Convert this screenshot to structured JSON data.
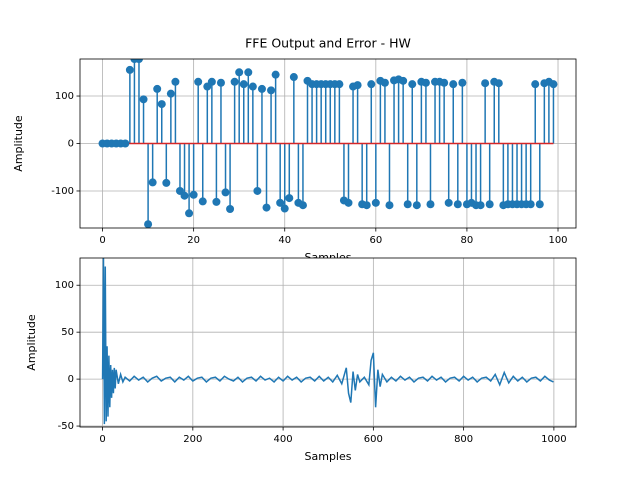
{
  "chart_data": [
    {
      "type": "stem",
      "title": "FFE Output and Error - HW",
      "xlabel": "Samples",
      "ylabel": "Amplitude",
      "color": "#1f77b4",
      "baseline_color": "#d62728",
      "grid": true,
      "x": [
        0,
        1,
        2,
        3,
        4,
        5,
        6,
        7,
        8,
        9,
        10,
        11,
        12,
        13,
        14,
        15,
        16,
        17,
        18,
        19,
        20,
        21,
        22,
        23,
        24,
        25,
        26,
        27,
        28,
        29,
        30,
        31,
        32,
        33,
        34,
        35,
        36,
        37,
        38,
        39,
        40,
        41,
        42,
        43,
        44,
        45,
        46,
        47,
        48,
        49,
        50,
        51,
        52,
        53,
        54,
        55,
        56,
        57,
        58,
        59,
        60,
        61,
        62,
        63,
        64,
        65,
        66,
        67,
        68,
        69,
        70,
        71,
        72,
        73,
        74,
        75,
        76,
        77,
        78,
        79,
        80,
        81,
        82,
        83,
        84,
        85,
        86,
        87,
        88,
        89,
        90,
        91,
        92,
        93,
        94,
        95,
        96,
        97,
        98,
        99
      ],
      "values": [
        0,
        0,
        0,
        0,
        0,
        0,
        155,
        178,
        178,
        93,
        -170,
        -82,
        115,
        83,
        -83,
        105,
        130,
        -100,
        -110,
        -147,
        -108,
        130,
        -122,
        120,
        130,
        -123,
        128,
        -103,
        -138,
        130,
        150,
        125,
        150,
        120,
        -100,
        115,
        -135,
        112,
        145,
        -125,
        -137,
        -115,
        140,
        -125,
        -130,
        132,
        125,
        125,
        125,
        125,
        125,
        125,
        125,
        -120,
        -125,
        120,
        123,
        -128,
        -130,
        125,
        -125,
        132,
        128,
        -130,
        133,
        135,
        132,
        -128,
        125,
        -130,
        130,
        128,
        -128,
        130,
        130,
        128,
        -125,
        125,
        -128,
        128,
        -128,
        -125,
        -130,
        -130,
        127,
        -128,
        130,
        127,
        -130,
        -128,
        -128,
        -128,
        -128,
        -128,
        -128,
        125,
        -128,
        127,
        130,
        125
      ],
      "xlim": [
        -4.95,
        103.95
      ],
      "ylim": [
        -178,
        178
      ],
      "xticks": [
        0,
        20,
        40,
        60,
        80,
        100
      ],
      "yticks": [
        -100,
        0,
        100
      ]
    },
    {
      "type": "line",
      "xlabel": "Samples",
      "ylabel": "Amplitude",
      "color": "#1f77b4",
      "grid": true,
      "x": [
        0,
        2,
        4,
        6,
        8,
        10,
        12,
        14,
        16,
        18,
        20,
        22,
        24,
        26,
        28,
        30,
        35,
        40,
        45,
        50,
        60,
        70,
        80,
        90,
        100,
        110,
        120,
        130,
        140,
        150,
        160,
        170,
        180,
        190,
        200,
        210,
        220,
        230,
        240,
        250,
        260,
        270,
        280,
        290,
        300,
        310,
        320,
        330,
        340,
        350,
        360,
        370,
        380,
        390,
        400,
        410,
        420,
        430,
        440,
        450,
        460,
        470,
        480,
        490,
        500,
        510,
        520,
        530,
        540,
        545,
        550,
        555,
        560,
        565,
        570,
        580,
        590,
        595,
        600,
        605,
        610,
        615,
        620,
        630,
        640,
        650,
        660,
        670,
        680,
        690,
        700,
        710,
        720,
        730,
        740,
        750,
        760,
        770,
        780,
        790,
        800,
        810,
        820,
        830,
        840,
        850,
        860,
        870,
        880,
        890,
        900,
        910,
        920,
        930,
        940,
        950,
        960,
        970,
        980,
        990,
        999
      ],
      "values": [
        0,
        130,
        -48,
        120,
        -45,
        35,
        -40,
        25,
        -30,
        15,
        -20,
        10,
        -15,
        12,
        -10,
        10,
        -5,
        5,
        -3,
        2,
        -2,
        3,
        -1,
        2,
        -3,
        1,
        3,
        -2,
        1,
        2,
        -3,
        2,
        -1,
        3,
        -2,
        1,
        2,
        -3,
        1,
        2,
        -2,
        3,
        0,
        -2,
        2,
        -3,
        1,
        2,
        -2,
        3,
        -1,
        1,
        -3,
        2,
        -2,
        3,
        -1,
        2,
        -3,
        1,
        2,
        -2,
        3,
        -2,
        2,
        -3,
        4,
        -5,
        12,
        -15,
        -25,
        8,
        -12,
        5,
        -3,
        2,
        -6,
        20,
        28,
        -30,
        10,
        -8,
        5,
        -3,
        2,
        -2,
        3,
        -1,
        2,
        -3,
        1,
        2,
        -2,
        3,
        -1,
        2,
        -3,
        1,
        2,
        -2,
        3,
        -1,
        2,
        -3,
        1,
        2,
        -2,
        5,
        -6,
        7,
        -4,
        3,
        -2,
        2,
        -3,
        1,
        2,
        -2,
        3,
        -1,
        -3
      ],
      "xlim": [
        -50,
        1049
      ],
      "ylim": [
        -51,
        129
      ],
      "xticks": [
        0,
        200,
        400,
        600,
        800,
        1000
      ],
      "yticks": [
        -50,
        0,
        50,
        100
      ]
    }
  ]
}
